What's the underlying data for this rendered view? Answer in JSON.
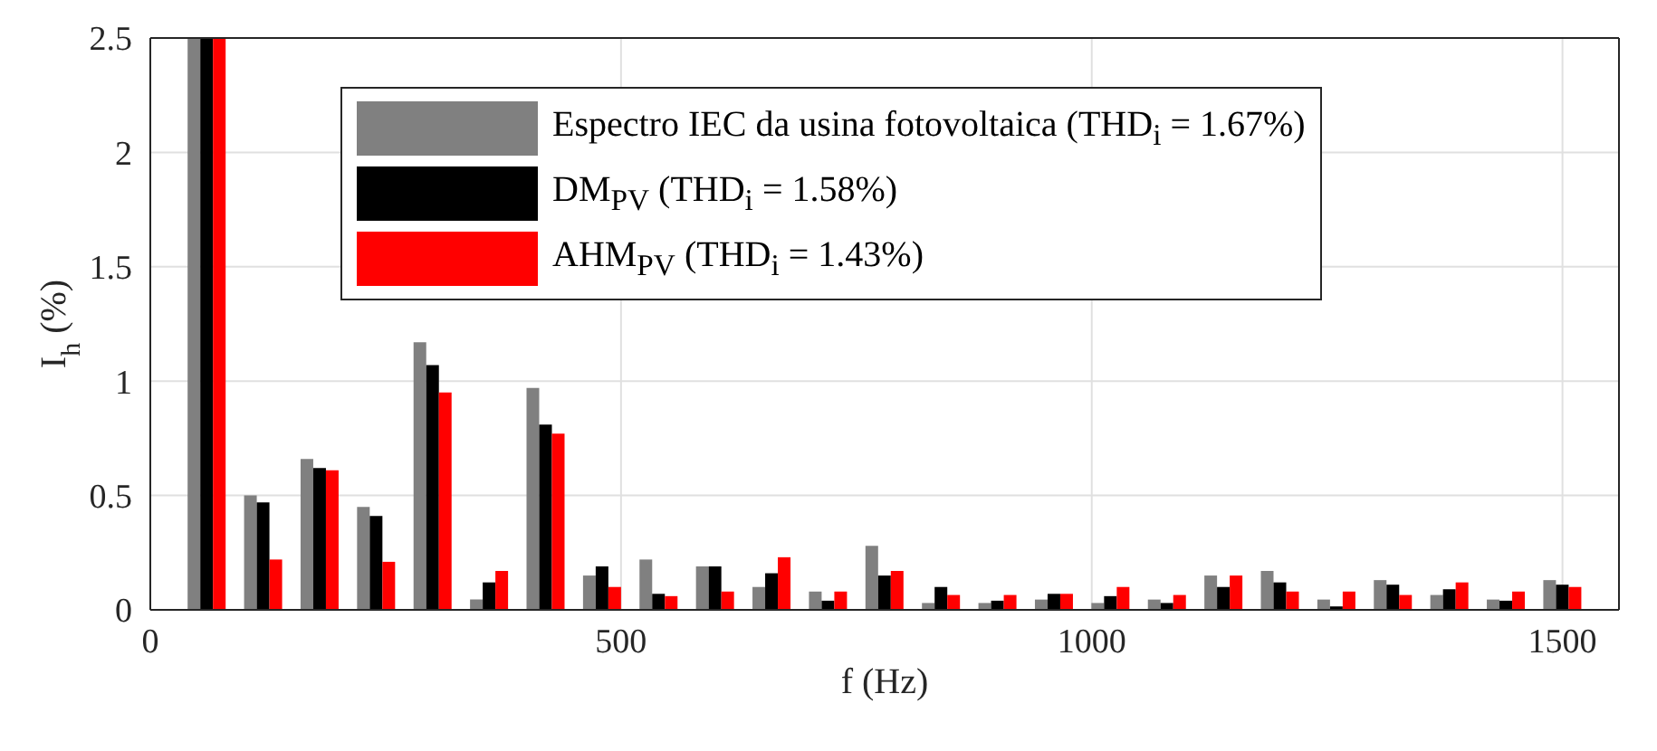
{
  "chart_data": {
    "type": "bar",
    "xlabel": "f (Hz)",
    "ylabel": "I$_{h}$ (%)",
    "x": [
      60,
      120,
      180,
      240,
      300,
      360,
      420,
      480,
      540,
      600,
      660,
      720,
      780,
      840,
      900,
      960,
      1020,
      1080,
      1140,
      1200,
      1260,
      1320,
      1380,
      1440,
      1500
    ],
    "series": [
      {
        "name": "Espectro IEC da usina fotovoltaica (THD$_{i}$ = 1.67%)",
        "color": "#808080",
        "values": [
          2.5,
          0.5,
          0.66,
          0.45,
          1.17,
          0.045,
          0.97,
          0.15,
          0.22,
          0.19,
          0.1,
          0.08,
          0.28,
          0.03,
          0.03,
          0.045,
          0.03,
          0.045,
          0.15,
          0.17,
          0.045,
          0.13,
          0.065,
          0.045,
          0.13
        ]
      },
      {
        "name": "DM$_{PV}$ (THD$_{i}$ = 1.58%)",
        "color": "#000000",
        "values": [
          2.5,
          0.47,
          0.62,
          0.41,
          1.07,
          0.12,
          0.81,
          0.19,
          0.07,
          0.19,
          0.16,
          0.04,
          0.15,
          0.1,
          0.04,
          0.07,
          0.06,
          0.03,
          0.1,
          0.12,
          0.015,
          0.11,
          0.09,
          0.04,
          0.11
        ]
      },
      {
        "name": "AHM$_{PV}$ (THD$_{i}$ = 1.43%)",
        "color": "#ff0000",
        "values": [
          2.5,
          0.22,
          0.61,
          0.21,
          0.95,
          0.17,
          0.77,
          0.1,
          0.06,
          0.08,
          0.23,
          0.08,
          0.17,
          0.065,
          0.065,
          0.07,
          0.1,
          0.065,
          0.15,
          0.08,
          0.08,
          0.065,
          0.12,
          0.08,
          0.1
        ]
      }
    ],
    "xlim": [
      0,
      1560
    ],
    "xticks": [
      0,
      500,
      1000,
      1500
    ],
    "ylim": [
      0,
      2.5
    ],
    "yticks": [
      0,
      0.5,
      1,
      1.5,
      2,
      2.5
    ],
    "grid": true,
    "legend": "top"
  }
}
